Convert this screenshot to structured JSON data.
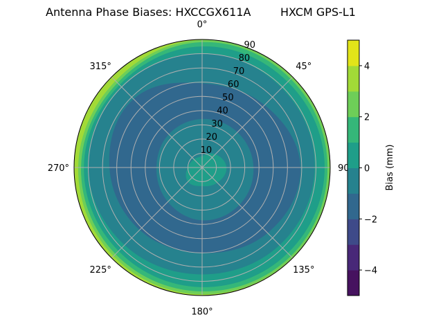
{
  "chart_data": {
    "type": "contour-polar",
    "title_left": "Antenna Phase Biases: HXCCGX611A",
    "title_right": "HXCM GPS-L1",
    "theta_direction": "clockwise",
    "theta_zero": "north",
    "theta_ticks": [
      "0°",
      "45°",
      "90°",
      "135°",
      "180°",
      "225°",
      "270°",
      "315°"
    ],
    "radial_ticks": [
      "10",
      "20",
      "30",
      "40",
      "50",
      "60",
      "70",
      "80",
      "90"
    ],
    "radial_range": [
      0,
      90
    ],
    "grid": true,
    "colorbar": {
      "label": "Bias (mm)",
      "range": [
        -5,
        5
      ],
      "levels": [
        -5,
        -4,
        -3,
        -2,
        -1,
        0,
        1,
        2,
        3,
        4,
        5
      ],
      "colors": [
        "#46125f",
        "#482878",
        "#3e4a89",
        "#31688e",
        "#26828e",
        "#1f9e89",
        "#35b779",
        "#6ece58",
        "#a2da37",
        "#e2e419"
      ],
      "ticks": [
        "−4",
        "−2",
        "0",
        "2",
        "4"
      ]
    },
    "band_azimuths": [
      0,
      45,
      90,
      135,
      180,
      225,
      270,
      315
    ],
    "bands": [
      {
        "range": [
          3,
          4
        ],
        "outer_zenith": [
          90,
          90,
          90,
          90,
          90,
          90,
          90,
          90
        ]
      },
      {
        "range": [
          2,
          3
        ],
        "outer_zenith": [
          89.5,
          89.5,
          89.5,
          89.5,
          89,
          88,
          87,
          86
        ]
      },
      {
        "range": [
          1,
          2
        ],
        "outer_zenith": [
          88,
          88,
          88,
          88,
          87,
          86,
          85,
          84
        ]
      },
      {
        "range": [
          0,
          1
        ],
        "outer_zenith": [
          85,
          85,
          86,
          85,
          84,
          83,
          83,
          82
        ]
      },
      {
        "range": [
          -1,
          0
        ],
        "outer_zenith": [
          80,
          79,
          79,
          77,
          75,
          77,
          80,
          80
        ]
      },
      {
        "range": [
          -2,
          -1
        ],
        "outer_zenith": [
          59,
          62,
          69,
          65,
          60,
          62,
          65,
          68
        ]
      },
      {
        "range": [
          -1,
          0
        ],
        "outer_zenith": [
          34,
          35,
          36,
          37,
          37,
          34,
          32,
          33
        ]
      },
      {
        "range": [
          0,
          1
        ],
        "outer_zenith": [
          8,
          13,
          17,
          15,
          13,
          14,
          10,
          8
        ]
      }
    ]
  }
}
